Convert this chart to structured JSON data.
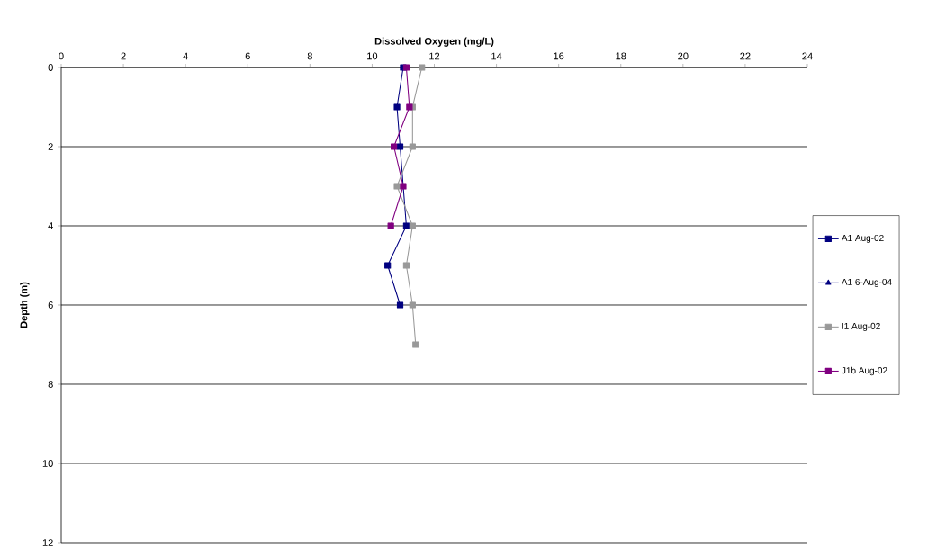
{
  "chart_data": {
    "type": "line",
    "xlabel": "Dissolved Oxygen (mg/L)",
    "ylabel": "Depth (m)",
    "xlim": [
      0,
      24
    ],
    "xticks": [
      0,
      2,
      4,
      6,
      8,
      10,
      12,
      14,
      16,
      18,
      20,
      22,
      24
    ],
    "ylim": [
      12,
      0
    ],
    "yticks": [
      0,
      2,
      4,
      6,
      8,
      10,
      12
    ],
    "grid": "y",
    "legend": "right",
    "series": [
      {
        "name": "A1 Aug-02",
        "color": "#000080",
        "marker": "square",
        "x": [
          11.0,
          10.8,
          10.9,
          null,
          11.1,
          10.5,
          10.9
        ],
        "values": [
          0,
          1,
          2,
          null,
          4,
          5,
          6
        ]
      },
      {
        "name": "A1 6-Aug-04",
        "color": "#000080",
        "marker": "triangle",
        "x": [
          null
        ],
        "values": [
          null
        ]
      },
      {
        "name": "I1 Aug-02",
        "color": "#999999",
        "marker": "square",
        "x": [
          11.6,
          11.3,
          11.3,
          10.8,
          11.3,
          11.1,
          11.3,
          11.4
        ],
        "values": [
          0,
          1,
          2,
          3,
          4,
          5,
          6,
          7
        ]
      },
      {
        "name": "J1b Aug-02",
        "color": "#800080",
        "marker": "square",
        "x": [
          11.1,
          11.2,
          10.7,
          11.0,
          10.6
        ],
        "values": [
          0,
          1,
          2,
          3,
          4
        ]
      }
    ]
  }
}
